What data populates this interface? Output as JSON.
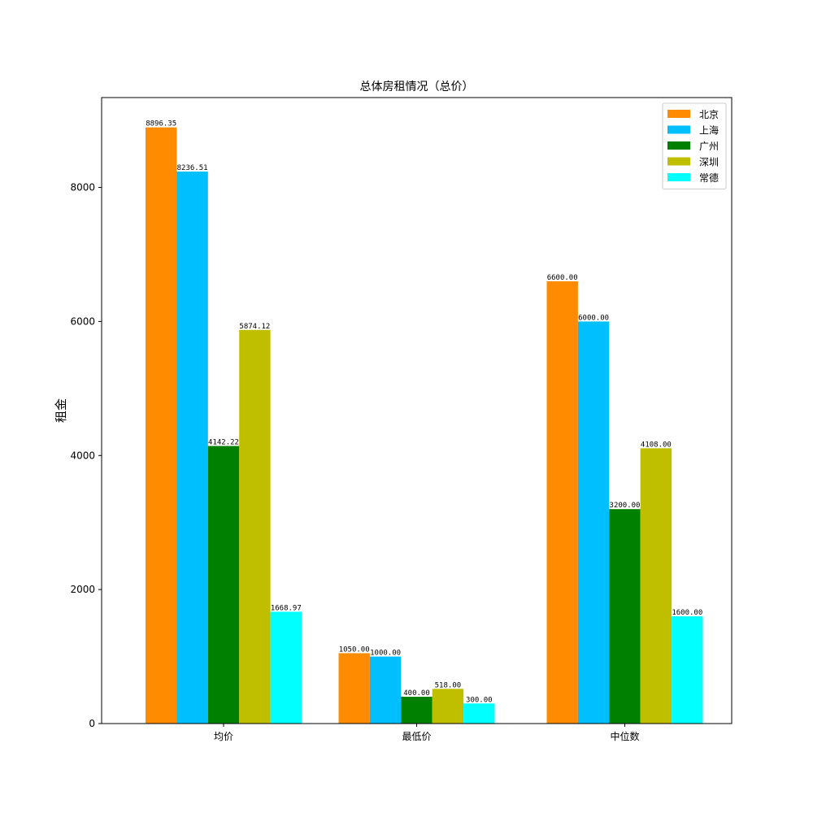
{
  "chart_data": {
    "type": "bar",
    "title": "总体房租情况（总价）",
    "xlabel": "",
    "ylabel": "租金",
    "categories": [
      "均价",
      "最低价",
      "中位数"
    ],
    "ylim": [
      0,
      9341.17
    ],
    "y_ticks": [
      0,
      2000,
      4000,
      6000,
      8000
    ],
    "grid": false,
    "legend_position": "top-right",
    "value_label_decimals": 2,
    "series": [
      {
        "name": "北京",
        "color": "#ff8c00",
        "values": [
          8896.35,
          1050.0,
          6600.0
        ]
      },
      {
        "name": "上海",
        "color": "#00bfff",
        "values": [
          8236.51,
          1000.0,
          6000.0
        ]
      },
      {
        "name": "广州",
        "color": "#008000",
        "values": [
          4142.22,
          400.0,
          3200.0
        ]
      },
      {
        "name": "深圳",
        "color": "#bfbf00",
        "values": [
          5874.12,
          518.0,
          4108.0
        ]
      },
      {
        "name": "常德",
        "color": "#00ffff",
        "values": [
          1668.97,
          300.0,
          1600.0
        ]
      }
    ]
  }
}
